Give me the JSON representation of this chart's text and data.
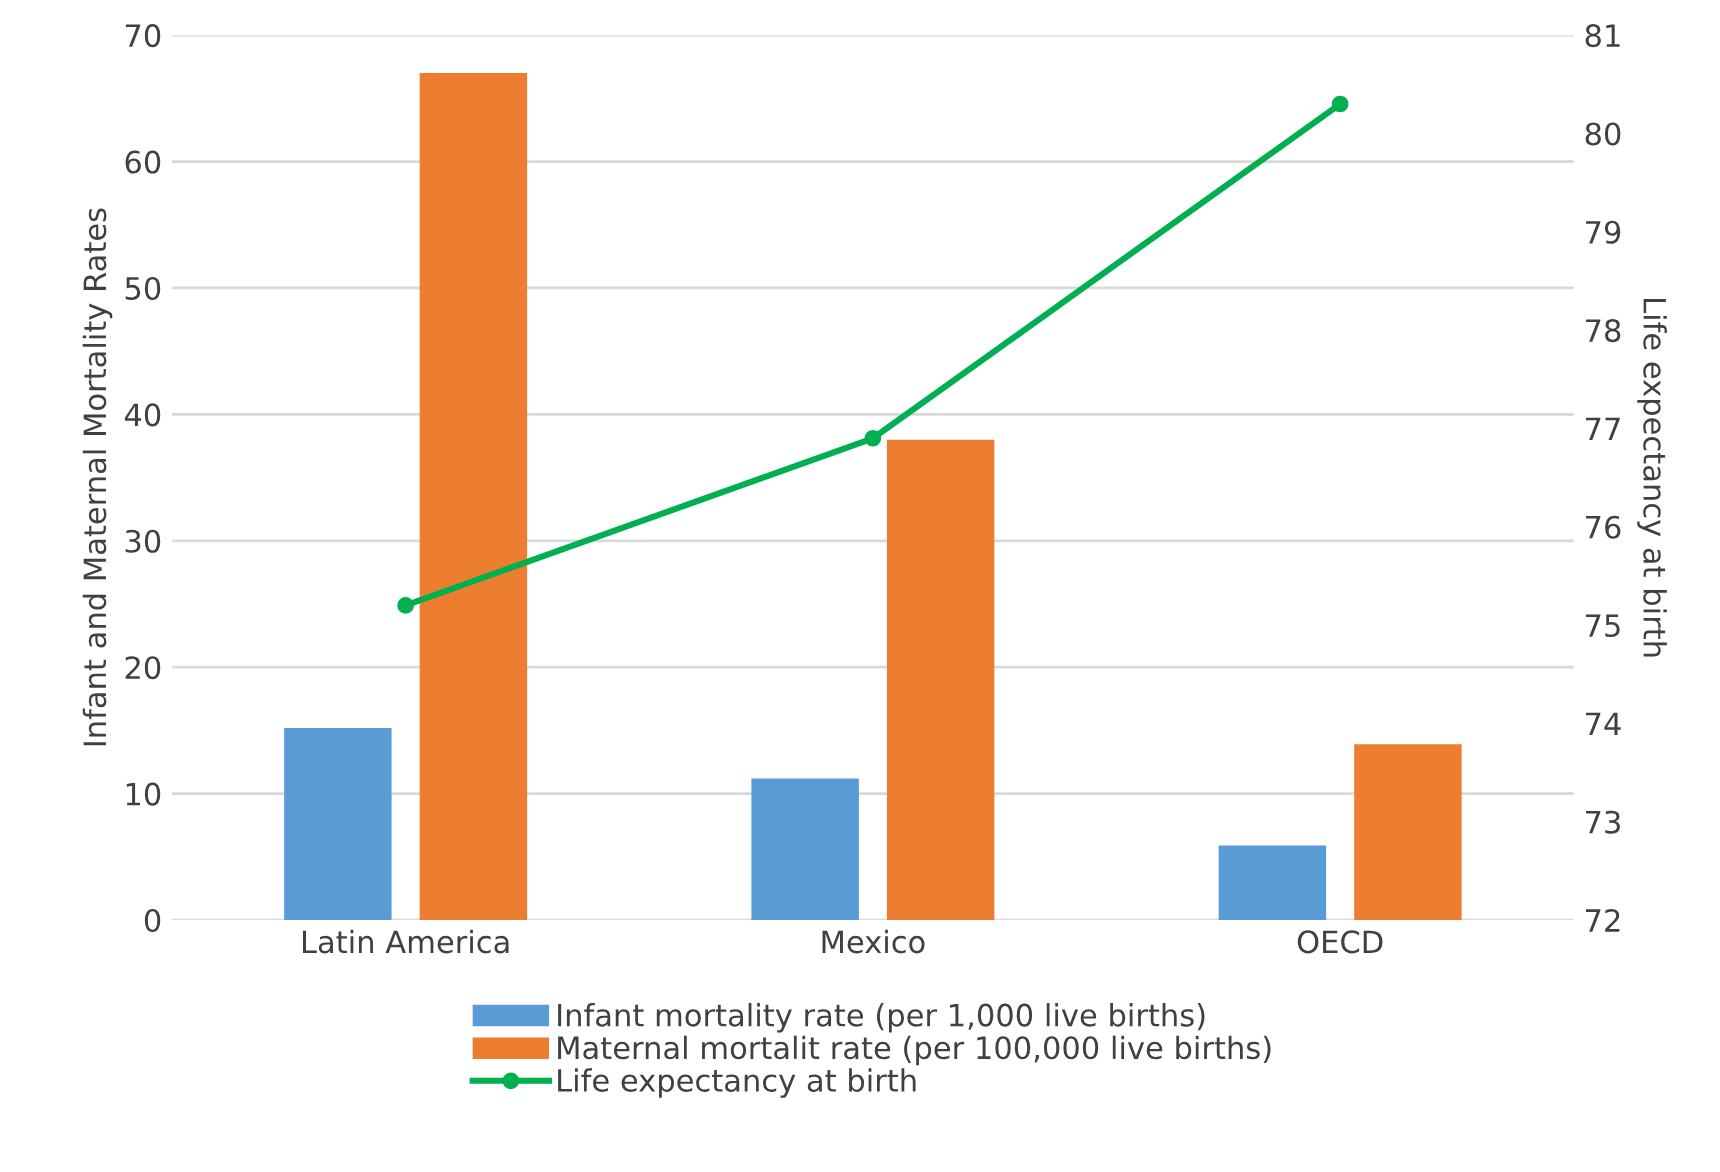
{
  "chart_data": {
    "type": "bar",
    "ylabel": "Infant and Maternal Mortality Rates",
    "y2label": "Life expectancy at birth",
    "categories": [
      "Latin America",
      "Mexico",
      "OECD"
    ],
    "series": [
      {
        "name": "Infant mortality rate (per 1,000 live births)",
        "color": "#5b9bd5",
        "values": [
          15.2,
          11.2,
          5.9
        ]
      },
      {
        "name": "Maternal mortalit rate (per 100,000 live births)",
        "color": "#ed7d31",
        "values": [
          67.0,
          38.0,
          13.9
        ]
      },
      {
        "name": "Life expectancy at birth",
        "type": "line",
        "axis": "y2",
        "color": "#00b050",
        "marker": "circle",
        "values": [
          75.2,
          76.9,
          80.3
        ]
      }
    ],
    "ylim": [
      0,
      70
    ],
    "yticks": [
      0,
      10,
      20,
      30,
      40,
      50,
      60,
      70
    ],
    "y2lim": [
      72,
      81
    ],
    "y2ticks": [
      72,
      73,
      74,
      75,
      76,
      77,
      78,
      79,
      80,
      81
    ],
    "grid": "y",
    "legend": "bottom"
  }
}
